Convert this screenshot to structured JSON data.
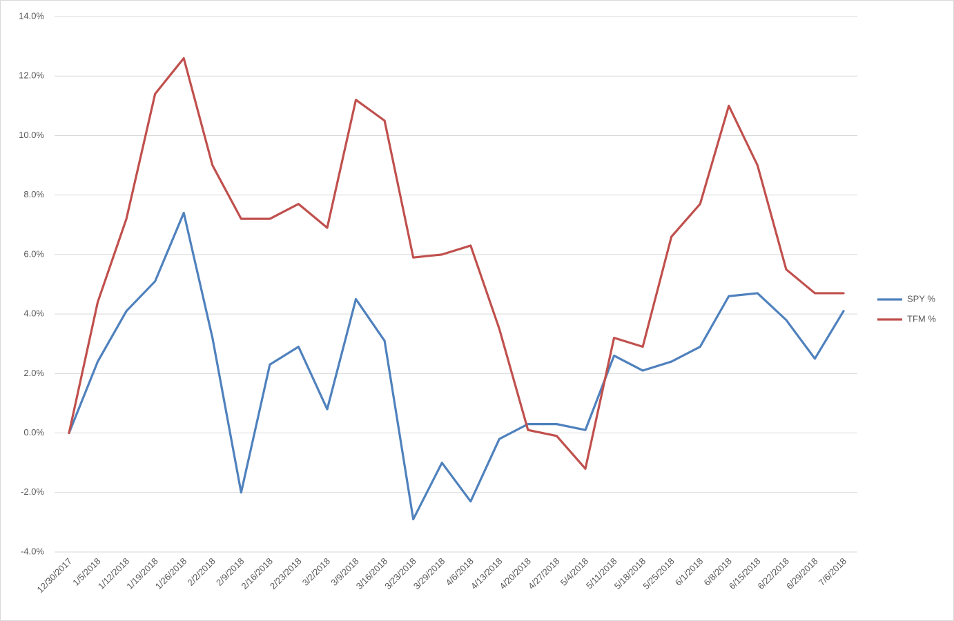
{
  "chart_data": {
    "type": "line",
    "title": "",
    "xlabel": "",
    "ylabel": "",
    "categories": [
      "12/30/2017",
      "1/5/2018",
      "1/12/2018",
      "1/19/2018",
      "1/26/2018",
      "2/2/2018",
      "2/9/2018",
      "2/16/2018",
      "2/23/2018",
      "3/2/2018",
      "3/9/2018",
      "3/16/2018",
      "3/23/2018",
      "3/29/2018",
      "4/6/2018",
      "4/13/2018",
      "4/20/2018",
      "4/27/2018",
      "5/4/2018",
      "5/11/2018",
      "5/18/2018",
      "5/25/2018",
      "6/1/2018",
      "6/8/2018",
      "6/15/2018",
      "6/22/2018",
      "6/29/2018",
      "7/6/2018"
    ],
    "ylim": [
      -0.04,
      0.14
    ],
    "yticks": [
      -0.04,
      -0.02,
      0.0,
      0.02,
      0.04,
      0.06,
      0.08,
      0.1,
      0.12,
      0.14
    ],
    "ytick_labels": [
      "-4.0%",
      "-2.0%",
      "0.0%",
      "2.0%",
      "4.0%",
      "6.0%",
      "8.0%",
      "10.0%",
      "12.0%",
      "14.0%"
    ],
    "grid": true,
    "legend_position": "right",
    "series": [
      {
        "name": "SPY %",
        "color": "#4f81bd",
        "values": [
          0.0,
          0.024,
          0.041,
          0.051,
          0.074,
          0.032,
          -0.02,
          0.023,
          0.029,
          0.008,
          0.045,
          0.031,
          -0.029,
          -0.01,
          -0.023,
          -0.002,
          0.003,
          0.003,
          0.001,
          0.026,
          0.021,
          0.024,
          0.029,
          0.046,
          0.047,
          0.038,
          0.025,
          0.041
        ]
      },
      {
        "name": "TFM %",
        "color": "#c0504d",
        "values": [
          0.0,
          0.044,
          0.072,
          0.114,
          0.126,
          0.09,
          0.072,
          0.072,
          0.077,
          0.069,
          0.112,
          0.105,
          0.059,
          0.06,
          0.063,
          0.035,
          0.001,
          -0.001,
          -0.012,
          0.032,
          0.029,
          0.066,
          0.077,
          0.11,
          0.09,
          0.055,
          0.047,
          0.047
        ]
      }
    ]
  }
}
